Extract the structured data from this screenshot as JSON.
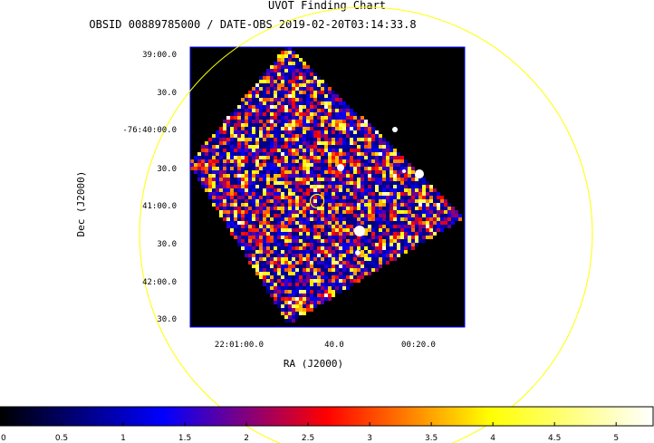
{
  "chart_data": {
    "type": "heatmap",
    "title": "UVOT Finding Chart",
    "subtitle": "OBSID 00889785000 / DATE-OBS 2019-02-20T03:14:33.8",
    "xlabel": "RA (J2000)",
    "ylabel": "Dec (J2000)",
    "x_tick_labels": [
      "22:01:00.0",
      "40.0",
      "00:20.0"
    ],
    "y_tick_labels": [
      "39:00.0",
      "30.0",
      "-76:40:00.0",
      "30.0",
      "41:00.0",
      "30.0",
      "42:00.0",
      "30.0"
    ],
    "colorbar": {
      "ticks": [
        0,
        0.5,
        1,
        1.5,
        2,
        2.5,
        3,
        3.5,
        4,
        4.5,
        5
      ],
      "tick_labels": [
        "0",
        "0.5",
        "1",
        "1.5",
        "2",
        "2.5",
        "3",
        "3.5",
        "4",
        "4.5",
        "5"
      ],
      "range": [
        0,
        5.3
      ],
      "colormap_stops": [
        "#000000",
        "#0000ff",
        "#ff0000",
        "#ffff00",
        "#ffffff"
      ]
    },
    "overlay_colors": {
      "large_circle": "#ffff00",
      "target_marker": "#ffff00",
      "frame": "#0000ff"
    }
  }
}
